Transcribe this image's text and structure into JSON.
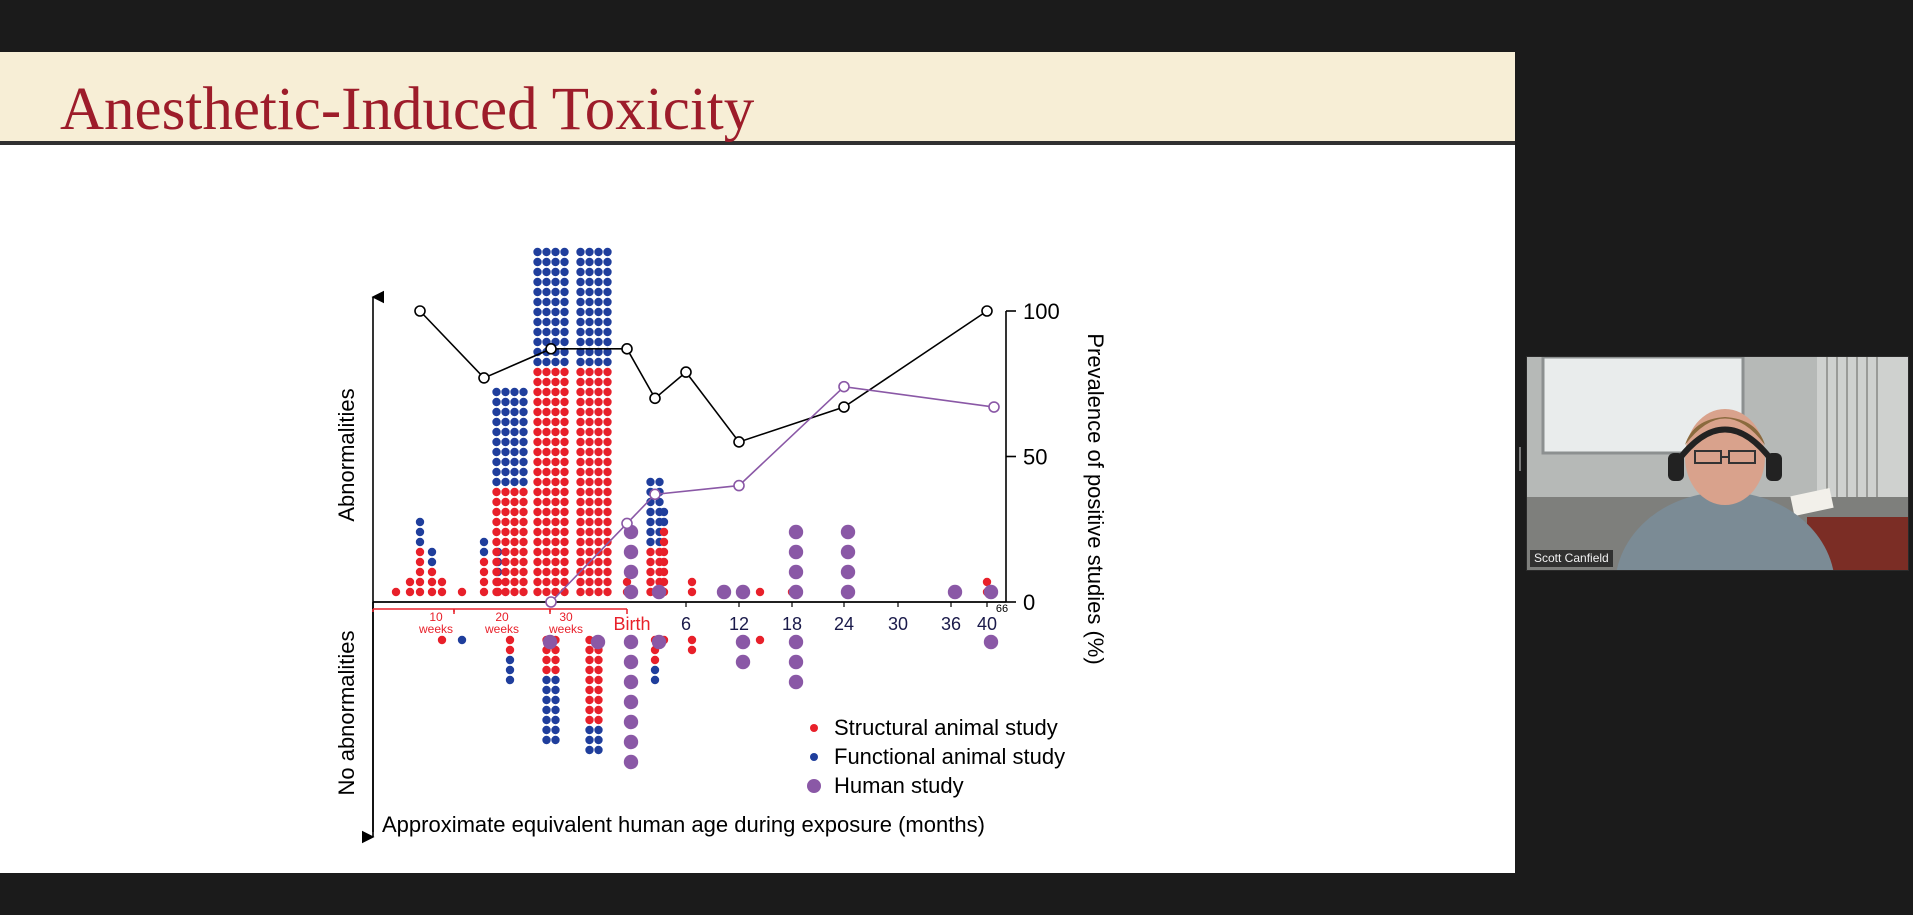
{
  "slide": {
    "title": "Anesthetic-Induced Toxicity"
  },
  "participant": {
    "name": "Scott Canfield"
  },
  "chart_data": {
    "type": "scatter",
    "xlabel": "Approximate equivalent human age during exposure (months)",
    "ylabel_top": "Abnormalities",
    "ylabel_bottom": "No abnormalities",
    "y2label": "Prevalence of positive studies (%)",
    "y2lim": [
      0,
      100
    ],
    "y2_ticks": [
      "0",
      "50",
      "100"
    ],
    "x_tick_labels": [
      "Birth",
      "6",
      "12",
      "18",
      "24",
      "30",
      "36",
      "40"
    ],
    "x_tick_extra": "66",
    "prenatal_ticks": [
      {
        "value": "10",
        "unit": "weeks"
      },
      {
        "value": "20",
        "unit": "weeks"
      },
      {
        "value": "30",
        "unit": "weeks"
      }
    ],
    "legend": [
      {
        "label": "Structural animal study",
        "color": "#e8202a",
        "marker": "small-dot"
      },
      {
        "label": "Functional animal study",
        "color": "#1f3e9c",
        "marker": "small-dot"
      },
      {
        "label": "Human study",
        "color": "#8a58a6",
        "marker": "large-dot"
      }
    ],
    "series": [
      {
        "name": "Functional animal study",
        "line_color": "#000000",
        "marker": "open-circle",
        "points": [
          {
            "x": "10 weeks",
            "y": 100
          },
          {
            "x": "20 weeks",
            "y": 77
          },
          {
            "x": "30 weeks",
            "y": 87
          },
          {
            "x": "Birth",
            "y": 87
          },
          {
            "x": 3,
            "y": 70
          },
          {
            "x": 6,
            "y": 79
          },
          {
            "x": 12,
            "y": 55
          },
          {
            "x": 24,
            "y": 67
          },
          {
            "x": 40,
            "y": 100
          }
        ]
      },
      {
        "name": "Human study",
        "line_color": "#8a58a6",
        "marker": "open-circle",
        "points": [
          {
            "x": "30 weeks",
            "y": 0
          },
          {
            "x": "Birth",
            "y": 27
          },
          {
            "x": 3,
            "y": 37
          },
          {
            "x": 12,
            "y": 40
          },
          {
            "x": 24,
            "y": 74
          },
          {
            "x": 66,
            "y": 67
          }
        ]
      }
    ],
    "dot_columns": {
      "note": "Each dot = one study; dots above axis show abnormalities, below show none",
      "columns": [
        {
          "x": "~7 weeks",
          "structural_above": 1
        },
        {
          "x": "~9 weeks",
          "structural_above": 2
        },
        {
          "x": "10 weeks",
          "structural_above": 5,
          "functional_above": 3
        },
        {
          "x": "~11 weeks",
          "structural_above": 3,
          "functional_above": 2
        },
        {
          "x": "~14 weeks",
          "structural_above": 2,
          "structural_below": 1
        },
        {
          "x": "~16 weeks",
          "structural_above": 1,
          "functional_below": 1
        },
        {
          "x": "20 weeks",
          "structural_above": 4,
          "functional_above": 2
        },
        {
          "x": "~25 weeks",
          "structural_above": 2,
          "functional_above": 3
        },
        {
          "x": "~27 weeks",
          "structural_above": 11,
          "functional_above": 10,
          "structural_below": 2,
          "functional_below": 3
        },
        {
          "x": "30 weeks",
          "structural_above": 23,
          "functional_above": 12,
          "structural_below": 4,
          "functional_below": 7
        },
        {
          "x": "~34 weeks",
          "structural_above": 23,
          "functional_above": 12,
          "structural_below": 9,
          "functional_below": 3
        },
        {
          "x": "Birth",
          "structural_above": 2
        },
        {
          "x": 3,
          "structural_above": 5,
          "functional_above": 7,
          "structural_below": 3,
          "functional_below": 2
        },
        {
          "x": 5,
          "structural_above": 7,
          "functional_above": 2,
          "structural_below": 1
        },
        {
          "x": 8,
          "structural_above": 2,
          "structural_below": 2
        },
        {
          "x": 15,
          "structural_above": 1,
          "structural_below": 1
        },
        {
          "x": 18,
          "structural_above": 1
        },
        {
          "x": 40,
          "structural_above": 2
        }
      ],
      "human_above": [
        {
          "x": "Birth",
          "count": 4
        },
        {
          "x": 3,
          "count": 1
        },
        {
          "x": 10,
          "count": 1
        },
        {
          "x": 12,
          "count": 1
        },
        {
          "x": 18,
          "count": 4
        },
        {
          "x": 24,
          "count": 4
        },
        {
          "x": 36,
          "count": 1
        },
        {
          "x": 40,
          "count": 1
        }
      ],
      "human_below": [
        {
          "x": "~28 weeks",
          "count": 1
        },
        {
          "x": "~34 weeks",
          "count": 1
        },
        {
          "x": "Birth",
          "count": 7
        },
        {
          "x": 3,
          "count": 1
        },
        {
          "x": 12,
          "count": 2
        },
        {
          "x": 18,
          "count": 3
        },
        {
          "x": 40,
          "count": 1
        }
      ]
    }
  }
}
